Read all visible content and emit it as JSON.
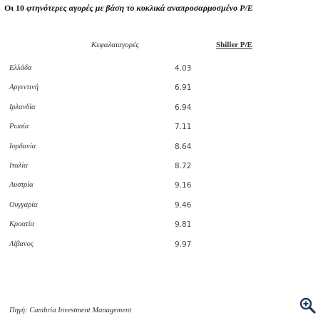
{
  "title": {
    "lead": "Οι 10",
    "rest": "φτηνότερες αγορές με βάση το κυκλικά αναπροσαρμοσμένο P/E"
  },
  "table": {
    "headers": {
      "category": "Κεφαλαιαγορές",
      "value": "Shiller P/E"
    },
    "rows": [
      {
        "country": "Ελλάδα",
        "value": "4.03"
      },
      {
        "country": "Αργεντινή",
        "value": "6.91"
      },
      {
        "country": "Ιρλανδία",
        "value": "6.94"
      },
      {
        "country": "Ρωσία",
        "value": "7.11"
      },
      {
        "country": "Ιορδανία",
        "value": "8.64"
      },
      {
        "country": "Ιταλία",
        "value": "8.72"
      },
      {
        "country": "Αυστρία",
        "value": "9.16"
      },
      {
        "country": "Ουγγαρία",
        "value": "9.46"
      },
      {
        "country": "Κροατία",
        "value": "9.81"
      },
      {
        "country": "Λίβανος",
        "value": "9.97"
      }
    ]
  },
  "source": "Πηγή: Cambria Investment Management",
  "zoom": {
    "icon": "magnifier-zoom-icon",
    "color": "#1a3a5a"
  }
}
